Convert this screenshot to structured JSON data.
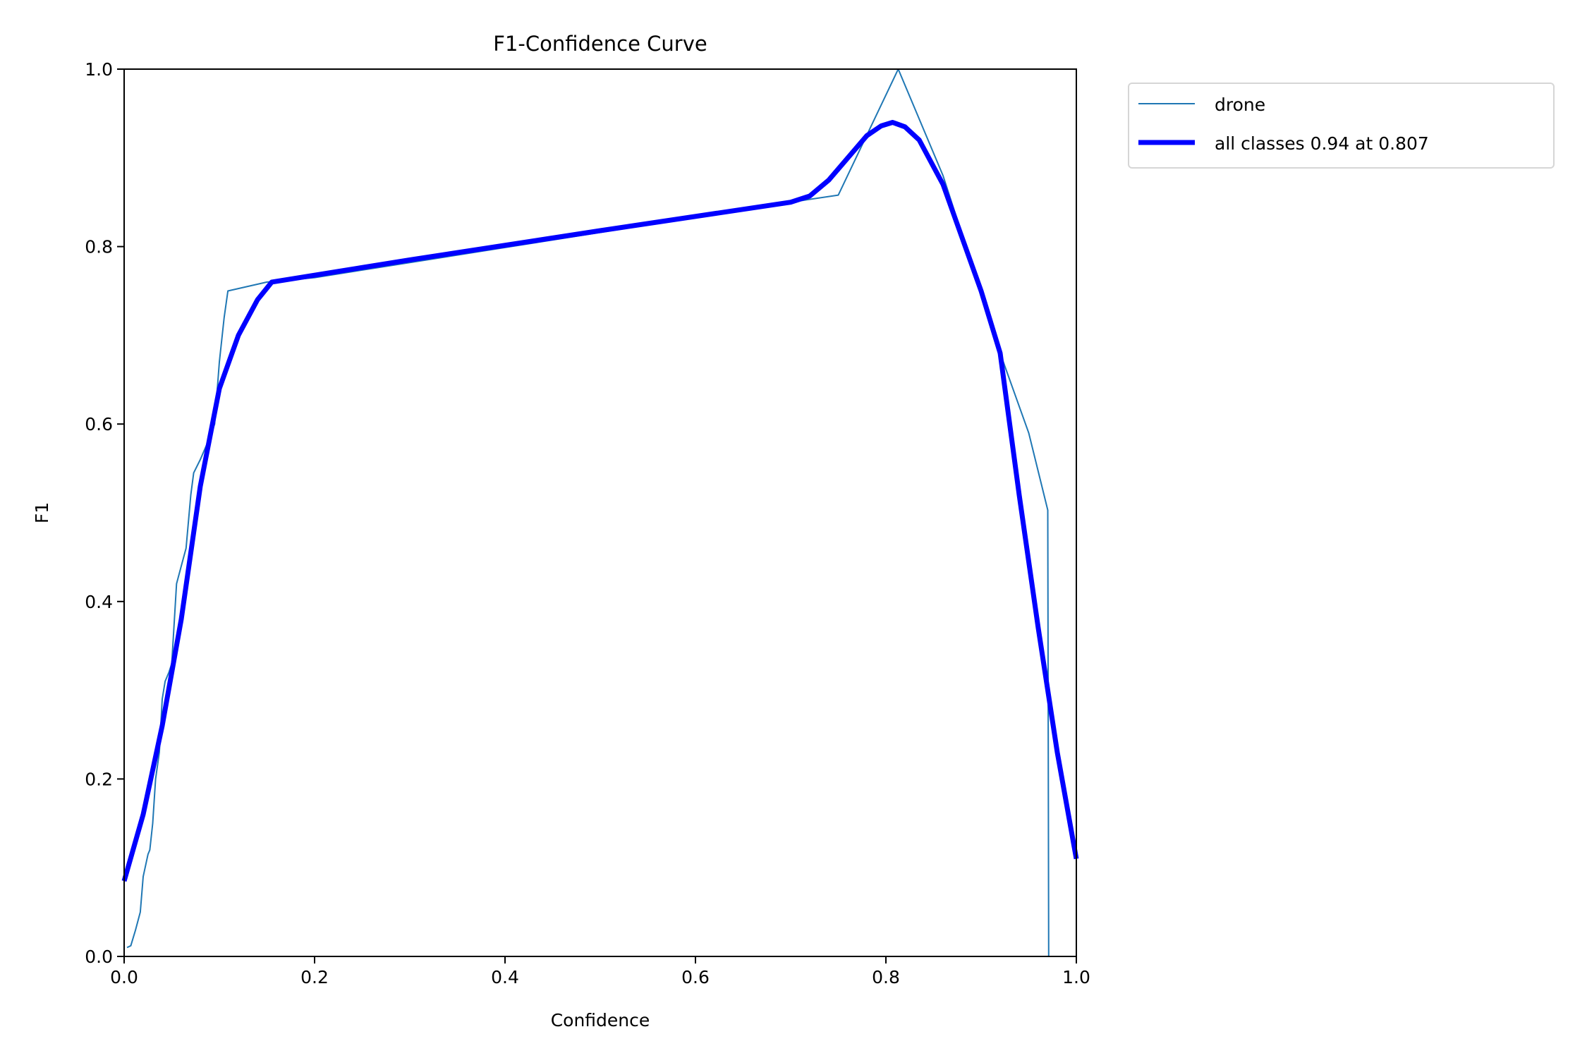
{
  "chart_data": {
    "type": "line",
    "title": "F1-Confidence Curve",
    "xlabel": "Confidence",
    "ylabel": "F1",
    "xlim": [
      0,
      1
    ],
    "ylim": [
      0,
      1
    ],
    "xticks": [
      "0.0",
      "0.2",
      "0.4",
      "0.6",
      "0.8",
      "1.0"
    ],
    "yticks": [
      "0.0",
      "0.2",
      "0.4",
      "0.6",
      "0.8",
      "1.0"
    ],
    "grid": false,
    "legend_placement": "outside-top-right",
    "series": [
      {
        "name": "drone",
        "color": "#1f77b4",
        "x": [
          0.003,
          0.007,
          0.012,
          0.017,
          0.02,
          0.025,
          0.027,
          0.03,
          0.033,
          0.037,
          0.04,
          0.043,
          0.047,
          0.05,
          0.055,
          0.06,
          0.065,
          0.07,
          0.073,
          0.08,
          0.09,
          0.095,
          0.1,
          0.105,
          0.109,
          0.15,
          0.2,
          0.4,
          0.6,
          0.7,
          0.75,
          0.813,
          0.86,
          0.92,
          0.95,
          0.97,
          0.971,
          1.0
        ],
        "y": [
          0.01,
          0.012,
          0.03,
          0.05,
          0.09,
          0.115,
          0.12,
          0.15,
          0.2,
          0.23,
          0.29,
          0.31,
          0.32,
          0.33,
          0.42,
          0.44,
          0.46,
          0.52,
          0.545,
          0.56,
          0.585,
          0.6,
          0.67,
          0.72,
          0.75,
          0.76,
          0.765,
          0.799,
          0.833,
          0.85,
          0.858,
          1.0,
          0.88,
          0.68,
          0.59,
          0.503,
          0.0,
          0.0
        ]
      },
      {
        "name": "all classes 0.94 at 0.807",
        "color": "#0000ff",
        "x": [
          0,
          0.02,
          0.04,
          0.06,
          0.08,
          0.1,
          0.12,
          0.14,
          0.155,
          0.3,
          0.5,
          0.7,
          0.72,
          0.74,
          0.76,
          0.78,
          0.795,
          0.807,
          0.82,
          0.835,
          0.86,
          0.9,
          0.92,
          0.94,
          0.96,
          0.98,
          1.0
        ],
        "y": [
          0.085,
          0.16,
          0.26,
          0.38,
          0.53,
          0.64,
          0.7,
          0.74,
          0.76,
          0.785,
          0.818,
          0.85,
          0.857,
          0.875,
          0.9,
          0.925,
          0.936,
          0.94,
          0.935,
          0.92,
          0.87,
          0.75,
          0.68,
          0.52,
          0.37,
          0.23,
          0.11
        ]
      }
    ]
  }
}
